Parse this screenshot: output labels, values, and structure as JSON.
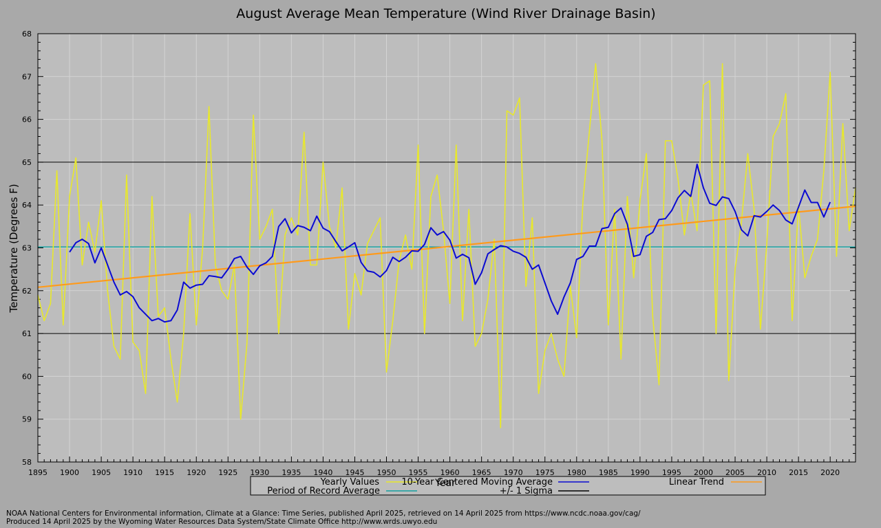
{
  "chart_data": {
    "type": "line",
    "title": "August Average Mean Temperature (Wind River Drainage Basin)",
    "xlabel": "Year",
    "ylabel": "Temperature (Degrees F)",
    "xlim": [
      1895,
      2024
    ],
    "ylim": [
      58,
      68
    ],
    "x_ticks": [
      1895,
      1900,
      1905,
      1910,
      1915,
      1920,
      1925,
      1930,
      1935,
      1940,
      1945,
      1950,
      1955,
      1960,
      1965,
      1970,
      1975,
      1980,
      1985,
      1990,
      1995,
      2000,
      2005,
      2010,
      2015,
      2020
    ],
    "y_ticks": [
      58,
      59,
      60,
      61,
      62,
      63,
      64,
      65,
      66,
      67,
      68
    ],
    "grid": true,
    "legend_position": "bottom",
    "series": [
      {
        "name": "Yearly Values",
        "color": "#e8e82a",
        "x_start": 1895,
        "values": [
          61.9,
          61.3,
          61.7,
          64.8,
          61.2,
          64.2,
          65.1,
          62.6,
          63.6,
          62.9,
          64.1,
          62.0,
          60.7,
          60.4,
          64.7,
          60.8,
          60.6,
          59.6,
          64.2,
          61.4,
          61.6,
          60.4,
          59.4,
          61.0,
          63.8,
          61.2,
          63.0,
          66.3,
          62.6,
          62.0,
          61.8,
          62.6,
          59.0,
          60.8,
          66.1,
          63.2,
          63.5,
          63.9,
          61.0,
          63.3,
          63.7,
          63.3,
          65.7,
          62.6,
          62.6,
          65.0,
          63.5,
          63.0,
          64.4,
          61.1,
          62.4,
          61.9,
          63.1,
          63.4,
          63.7,
          60.1,
          61.3,
          62.7,
          63.3,
          62.5,
          65.4,
          61.0,
          64.2,
          64.7,
          63.4,
          61.7,
          65.4,
          61.3,
          63.9,
          60.7,
          61.0,
          61.8,
          63.2,
          58.8,
          66.2,
          66.1,
          66.5,
          62.1,
          63.7,
          59.6,
          60.6,
          61.0,
          60.4,
          60.0,
          62.1,
          60.9,
          64.1,
          65.7,
          67.3,
          65.5,
          61.2,
          63.9,
          60.4,
          64.2,
          62.3,
          64.1,
          65.2,
          61.4,
          59.8,
          65.5,
          65.5,
          64.6,
          63.3,
          64.3,
          63.4,
          66.8,
          66.9,
          61.0,
          67.3,
          59.9,
          62.5,
          63.6,
          65.2,
          63.9,
          61.1,
          63.1,
          65.6,
          65.9,
          66.6,
          61.3,
          64.0,
          62.3,
          62.8,
          63.2,
          64.8,
          67.1,
          62.8,
          65.9,
          63.4,
          64.4
        ]
      },
      {
        "name": "10-Year Centered Moving Average",
        "color": "#0a0ad2",
        "x_start": 1900,
        "values": [
          62.9,
          63.12,
          63.2,
          63.1,
          62.65,
          63.0,
          62.6,
          62.2,
          61.9,
          61.98,
          61.86,
          61.6,
          61.45,
          61.3,
          61.35,
          61.27,
          61.3,
          61.55,
          62.2,
          62.06,
          62.13,
          62.15,
          62.35,
          62.33,
          62.3,
          62.5,
          62.75,
          62.8,
          62.55,
          62.38,
          62.58,
          62.65,
          62.8,
          63.5,
          63.68,
          63.35,
          63.52,
          63.48,
          63.4,
          63.74,
          63.46,
          63.38,
          63.15,
          62.93,
          63.02,
          63.12,
          62.66,
          62.46,
          62.43,
          62.32,
          62.47,
          62.78,
          62.68,
          62.78,
          62.93,
          62.92,
          63.08,
          63.47,
          63.3,
          63.38,
          63.18,
          62.76,
          62.85,
          62.77,
          62.15,
          62.42,
          62.86,
          62.96,
          63.05,
          63.02,
          62.92,
          62.87,
          62.78,
          62.5,
          62.6,
          62.18,
          61.76,
          61.45,
          61.85,
          62.18,
          62.73,
          62.8,
          63.04,
          63.04,
          63.45,
          63.48,
          63.8,
          63.93,
          63.55,
          62.8,
          62.84,
          63.27,
          63.36,
          63.66,
          63.68,
          63.87,
          64.17,
          64.34,
          64.2,
          64.95,
          64.4,
          64.04,
          63.99,
          64.19,
          64.15,
          63.85,
          63.42,
          63.28,
          63.75,
          63.72,
          63.85,
          64.0,
          63.87,
          63.65,
          63.56,
          63.95,
          64.35,
          64.06,
          64.06,
          63.72,
          64.07
        ]
      },
      {
        "name": "Linear Trend",
        "color": "#ff9a1a",
        "x": [
          1895,
          2024
        ],
        "y": [
          62.08,
          63.97
        ]
      },
      {
        "name": "Period of Record Average",
        "color": "#13a0a0",
        "x": [
          1895,
          2024
        ],
        "y": [
          63.02,
          63.02
        ]
      },
      {
        "name": "+/- 1 Sigma",
        "color": "#000000",
        "levels": [
          65.0,
          61.0
        ]
      }
    ]
  },
  "credits": {
    "line1": "NOAA National Centers for Environmental information, Climate at a Glance: Time Series, published April 2025, retrieved on 14 April 2025 from https://www.ncdc.noaa.gov/cag/",
    "line2": "Produced 14 April 2025 by the Wyoming Water Resources Data System/State Climate Office http://www.wrds.uwyo.edu"
  }
}
